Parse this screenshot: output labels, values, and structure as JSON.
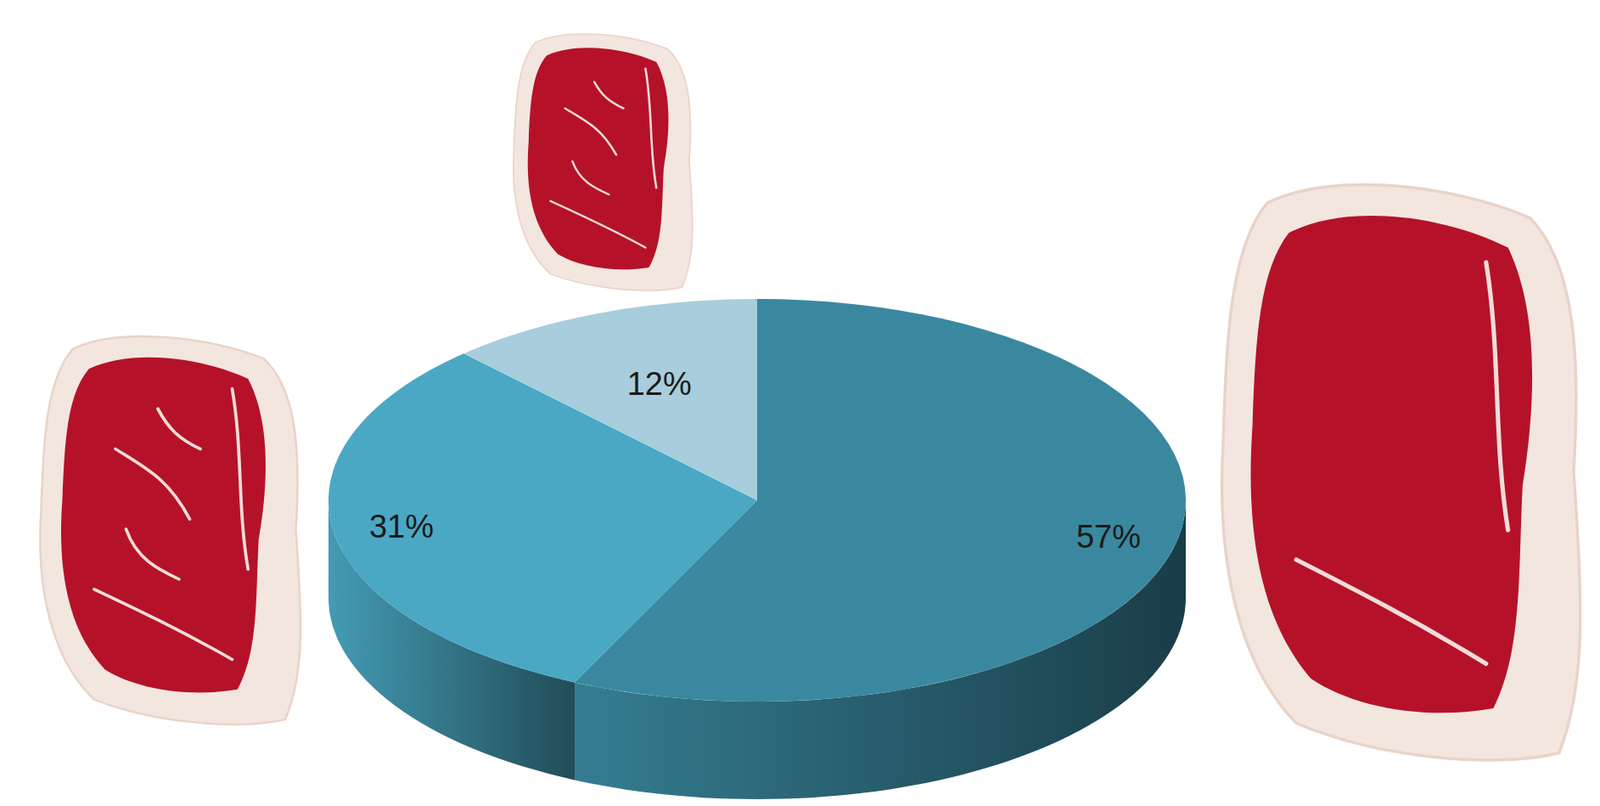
{
  "chart_data": {
    "type": "pie",
    "values": [
      57,
      31,
      12
    ],
    "value_labels": [
      "57%",
      "31%",
      "12%"
    ],
    "colors": [
      "#3a889f",
      "#4aa8c4",
      "#a8cddc"
    ],
    "data_labels": true
  }
}
